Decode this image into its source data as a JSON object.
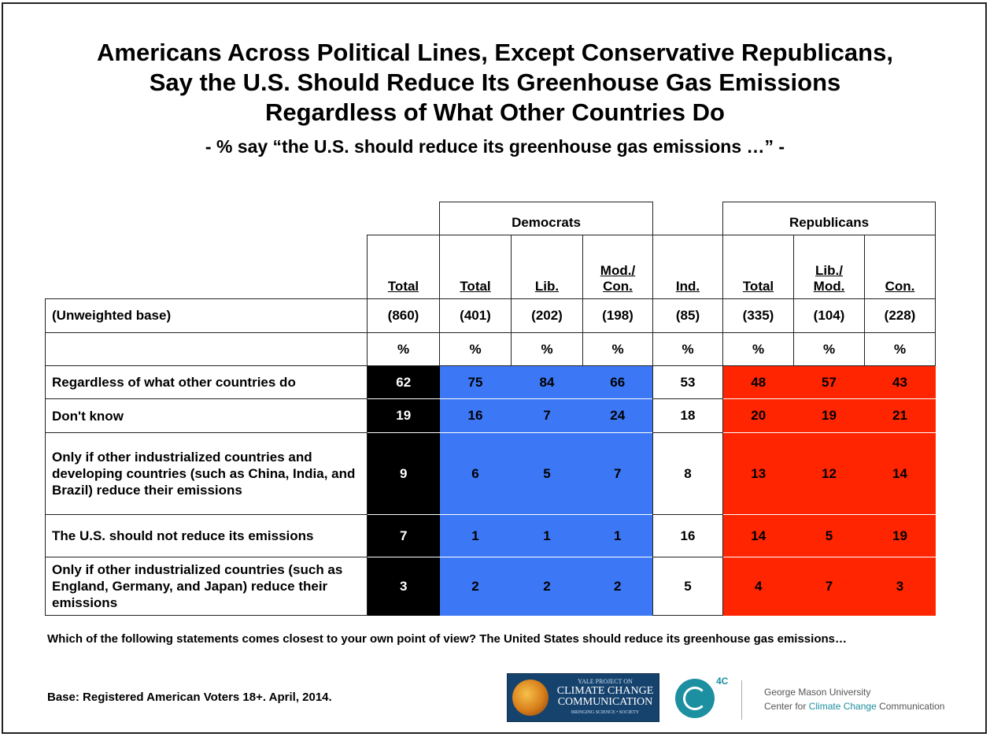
{
  "title_lines": [
    "Americans Across Political Lines, Except Conservative Republicans,",
    "Say the U.S. Should Reduce Its Greenhouse Gas Emissions",
    "Regardless of What Other Countries Do"
  ],
  "subtitle": "- % say “the U.S. should reduce its greenhouse gas emissions …” -",
  "groups": {
    "democrats": "Democrats",
    "republicans": "Republicans"
  },
  "columns": [
    {
      "line1": "",
      "line2": "Total"
    },
    {
      "line1": "",
      "line2": "Total"
    },
    {
      "line1": "",
      "line2": "Lib."
    },
    {
      "line1": "Mod./",
      "line2": "Con."
    },
    {
      "line1": "",
      "line2": "Ind."
    },
    {
      "line1": "",
      "line2": "Total"
    },
    {
      "line1": "Lib./",
      "line2": "Mod."
    },
    {
      "line1": "",
      "line2": "Con."
    }
  ],
  "base_label": "(Unweighted base)",
  "bases": [
    "(860)",
    "(401)",
    "(202)",
    "(198)",
    "(85)",
    "(335)",
    "(104)",
    "(228)"
  ],
  "pct_row": [
    "%",
    "%",
    "%",
    "%",
    "%",
    "%",
    "%",
    "%"
  ],
  "colors": {
    "total": "#000000",
    "democrats": "#3c78f5",
    "independents": "#ffffff",
    "republicans": "#ff2500"
  },
  "chart_data": {
    "type": "table",
    "categories": [
      "Total",
      "Democrats Total",
      "Democrats Lib.",
      "Democrats Mod./Con.",
      "Ind.",
      "Republicans Total",
      "Republicans Lib./Mod.",
      "Republicans Con."
    ],
    "rows": [
      {
        "label": "Regardless of what other countries do",
        "values": [
          62,
          75,
          84,
          66,
          53,
          48,
          57,
          43
        ]
      },
      {
        "label": "Don't know",
        "values": [
          19,
          16,
          7,
          24,
          18,
          20,
          19,
          21
        ]
      },
      {
        "label": "Only if other industrialized countries and developing countries (such as China, India, and Brazil) reduce their emissions",
        "values": [
          9,
          6,
          5,
          7,
          8,
          13,
          12,
          14
        ]
      },
      {
        "label": "The U.S. should not reduce its emissions",
        "values": [
          7,
          1,
          1,
          1,
          16,
          14,
          5,
          19
        ]
      },
      {
        "label": "Only if other industrialized countries (such as England, Germany, and Japan) reduce their emissions",
        "values": [
          3,
          2,
          2,
          2,
          5,
          4,
          7,
          3
        ]
      }
    ]
  },
  "footnote": "Which of the following statements comes closest to your own point of view? The United States should reduce its greenhouse gas emissions…",
  "base_note": "Base: Registered American Voters 18+. April, 2014.",
  "logos": {
    "yale_small": "YALE PROJECT ON",
    "yale_line1": "CLIMATE CHANGE",
    "yale_line2": "COMMUNICATION",
    "yale_tag": "BRINGING SCIENCE • SOCIETY",
    "fourc": "4C",
    "gmu_line1": "George Mason University",
    "gmu_line2_a": "Center for ",
    "gmu_line2_b": "Climate Change",
    "gmu_line2_c": " Communication"
  }
}
